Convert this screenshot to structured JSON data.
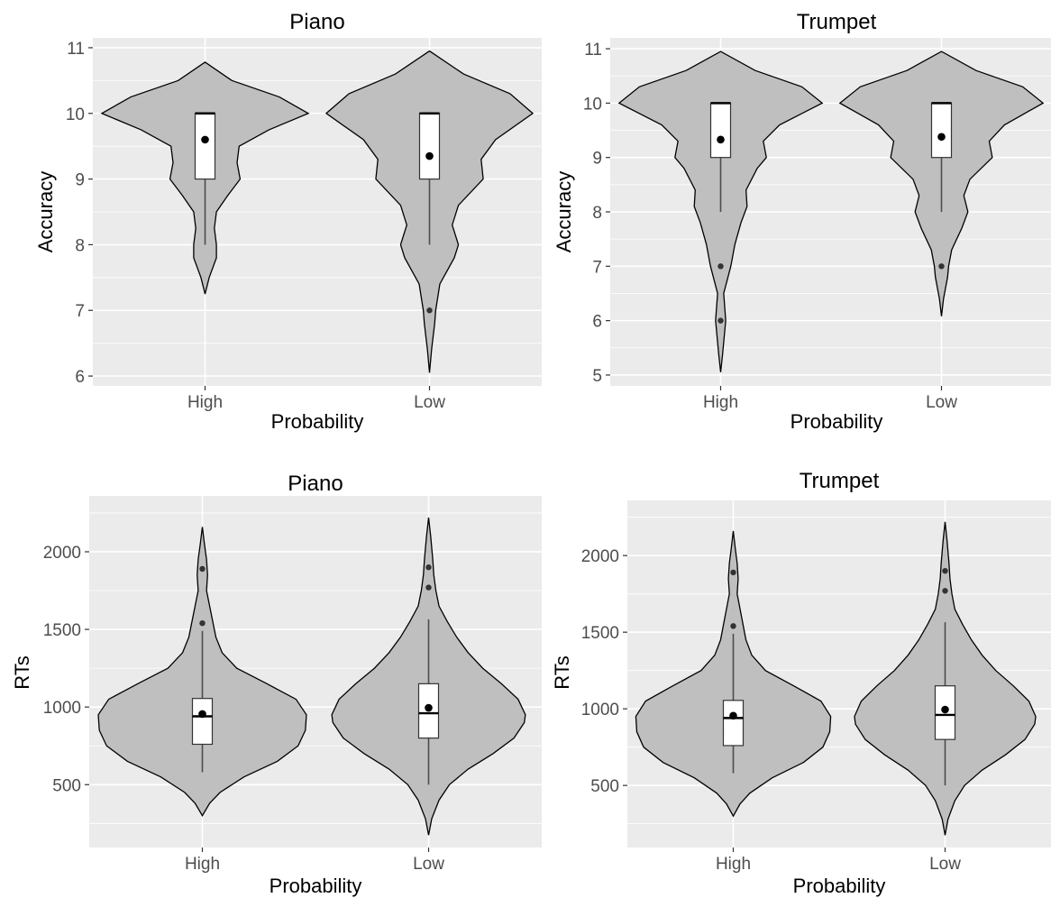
{
  "chart_data": [
    {
      "type": "violin",
      "title": "Piano",
      "xlabel": "Probability",
      "ylabel": "Accuracy",
      "categories": [
        "High",
        "Low"
      ],
      "ylim": [
        5.85,
        11.15
      ],
      "yticks": [
        6,
        7,
        8,
        9,
        10,
        11
      ],
      "grid": true,
      "violins": [
        {
          "category": "High",
          "min": 7.25,
          "max": 10.78,
          "density": [
            [
              7.25,
              0.0
            ],
            [
              7.5,
              0.04
            ],
            [
              7.8,
              0.11
            ],
            [
              8.0,
              0.11
            ],
            [
              8.25,
              0.09
            ],
            [
              8.5,
              0.11
            ],
            [
              8.75,
              0.22
            ],
            [
              9.0,
              0.34
            ],
            [
              9.25,
              0.31
            ],
            [
              9.5,
              0.33
            ],
            [
              9.75,
              0.62
            ],
            [
              10.0,
              1.0
            ],
            [
              10.25,
              0.72
            ],
            [
              10.5,
              0.26
            ],
            [
              10.78,
              0.0
            ]
          ],
          "q1": 9,
          "median": 10,
          "q3": 10,
          "whisker_low": 8,
          "whisker_high": 10,
          "mean": 9.6,
          "outliers": []
        },
        {
          "category": "Low",
          "min": 6.05,
          "max": 10.95,
          "density": [
            [
              6.05,
              0.0
            ],
            [
              6.4,
              0.02
            ],
            [
              6.8,
              0.05
            ],
            [
              7.0,
              0.06
            ],
            [
              7.4,
              0.1
            ],
            [
              7.8,
              0.24
            ],
            [
              8.0,
              0.28
            ],
            [
              8.3,
              0.22
            ],
            [
              8.6,
              0.28
            ],
            [
              9.0,
              0.52
            ],
            [
              9.3,
              0.5
            ],
            [
              9.6,
              0.64
            ],
            [
              10.0,
              1.0
            ],
            [
              10.3,
              0.78
            ],
            [
              10.6,
              0.33
            ],
            [
              10.95,
              0.0
            ]
          ],
          "q1": 9,
          "median": 10,
          "q3": 10,
          "whisker_low": 8,
          "whisker_high": 10,
          "mean": 9.35,
          "outliers": [
            7
          ]
        }
      ]
    },
    {
      "type": "violin",
      "title": "Trumpet",
      "xlabel": "Probability",
      "ylabel": "Accuracy",
      "categories": [
        "High",
        "Low"
      ],
      "ylim": [
        4.8,
        11.2
      ],
      "yticks": [
        5,
        6,
        7,
        8,
        9,
        10,
        11
      ],
      "grid": true,
      "violins": [
        {
          "category": "High",
          "min": 5.05,
          "max": 10.95,
          "density": [
            [
              5.05,
              0.0
            ],
            [
              5.4,
              0.02
            ],
            [
              6.0,
              0.05
            ],
            [
              6.5,
              0.03
            ],
            [
              7.0,
              0.1
            ],
            [
              7.4,
              0.14
            ],
            [
              7.8,
              0.2
            ],
            [
              8.1,
              0.26
            ],
            [
              8.4,
              0.25
            ],
            [
              8.8,
              0.36
            ],
            [
              9.0,
              0.45
            ],
            [
              9.3,
              0.42
            ],
            [
              9.6,
              0.58
            ],
            [
              10.0,
              1.0
            ],
            [
              10.3,
              0.8
            ],
            [
              10.6,
              0.34
            ],
            [
              10.95,
              0.0
            ]
          ],
          "q1": 9,
          "median": 10,
          "q3": 10,
          "whisker_low": 8,
          "whisker_high": 10,
          "mean": 9.33,
          "outliers": [
            7,
            6
          ]
        },
        {
          "category": "Low",
          "min": 6.08,
          "max": 10.95,
          "density": [
            [
              6.08,
              0.0
            ],
            [
              6.4,
              0.02
            ],
            [
              6.8,
              0.06
            ],
            [
              7.0,
              0.07
            ],
            [
              7.3,
              0.1
            ],
            [
              7.7,
              0.2
            ],
            [
              8.0,
              0.26
            ],
            [
              8.3,
              0.22
            ],
            [
              8.6,
              0.28
            ],
            [
              9.0,
              0.5
            ],
            [
              9.3,
              0.47
            ],
            [
              9.6,
              0.62
            ],
            [
              10.0,
              1.0
            ],
            [
              10.3,
              0.8
            ],
            [
              10.6,
              0.34
            ],
            [
              10.95,
              0.0
            ]
          ],
          "q1": 9,
          "median": 10,
          "q3": 10,
          "whisker_low": 8,
          "whisker_high": 10,
          "mean": 9.38,
          "outliers": [
            7
          ]
        }
      ]
    },
    {
      "type": "violin",
      "title": "Piano",
      "xlabel": "Probability",
      "ylabel": "RTs",
      "categories": [
        "High",
        "Low"
      ],
      "ylim": [
        95,
        2360
      ],
      "yticks": [
        500,
        1000,
        1500,
        2000
      ],
      "grid": true,
      "violins": [
        {
          "category": "High",
          "min": 300,
          "max": 2160,
          "density": [
            [
              300,
              0.0
            ],
            [
              380,
              0.07
            ],
            [
              450,
              0.17
            ],
            [
              550,
              0.4
            ],
            [
              650,
              0.72
            ],
            [
              750,
              0.92
            ],
            [
              850,
              0.99
            ],
            [
              950,
              1.0
            ],
            [
              1050,
              0.9
            ],
            [
              1150,
              0.62
            ],
            [
              1250,
              0.33
            ],
            [
              1350,
              0.19
            ],
            [
              1450,
              0.13
            ],
            [
              1550,
              0.1
            ],
            [
              1650,
              0.07
            ],
            [
              1750,
              0.04
            ],
            [
              1850,
              0.05
            ],
            [
              1950,
              0.04
            ],
            [
              2050,
              0.02
            ],
            [
              2160,
              0.0
            ]
          ],
          "q1": 760,
          "median": 940,
          "q3": 1055,
          "whisker_low": 580,
          "whisker_high": 1490,
          "mean": 955,
          "outliers": [
            1540,
            1890
          ]
        },
        {
          "category": "Low",
          "min": 175,
          "max": 2220,
          "density": [
            [
              175,
              0.0
            ],
            [
              280,
              0.03
            ],
            [
              400,
              0.1
            ],
            [
              500,
              0.2
            ],
            [
              600,
              0.38
            ],
            [
              700,
              0.62
            ],
            [
              800,
              0.82
            ],
            [
              900,
              0.92
            ],
            [
              950,
              0.93
            ],
            [
              1050,
              0.86
            ],
            [
              1150,
              0.7
            ],
            [
              1250,
              0.52
            ],
            [
              1350,
              0.38
            ],
            [
              1450,
              0.27
            ],
            [
              1550,
              0.18
            ],
            [
              1650,
              0.1
            ],
            [
              1750,
              0.07
            ],
            [
              1850,
              0.05
            ],
            [
              1950,
              0.04
            ],
            [
              2100,
              0.02
            ],
            [
              2220,
              0.0
            ]
          ],
          "q1": 800,
          "median": 960,
          "q3": 1150,
          "whisker_low": 500,
          "whisker_high": 1565,
          "mean": 995,
          "outliers": [
            1770,
            1900
          ]
        }
      ]
    },
    {
      "type": "violin",
      "title": "Trumpet",
      "xlabel": "Probability",
      "ylabel": "RTs",
      "categories": [
        "High",
        "Low"
      ],
      "ylim": [
        95,
        2360
      ],
      "yticks": [
        500,
        1000,
        1500,
        2000
      ],
      "grid": true,
      "violins": [
        {
          "category": "High",
          "min": 300,
          "max": 2160,
          "density": [
            [
              300,
              0.0
            ],
            [
              380,
              0.07
            ],
            [
              450,
              0.17
            ],
            [
              550,
              0.4
            ],
            [
              650,
              0.72
            ],
            [
              750,
              0.92
            ],
            [
              850,
              0.99
            ],
            [
              950,
              1.0
            ],
            [
              1050,
              0.9
            ],
            [
              1150,
              0.62
            ],
            [
              1250,
              0.33
            ],
            [
              1350,
              0.19
            ],
            [
              1450,
              0.13
            ],
            [
              1550,
              0.1
            ],
            [
              1650,
              0.07
            ],
            [
              1750,
              0.04
            ],
            [
              1850,
              0.05
            ],
            [
              1950,
              0.04
            ],
            [
              2050,
              0.02
            ],
            [
              2160,
              0.0
            ]
          ],
          "q1": 760,
          "median": 940,
          "q3": 1055,
          "whisker_low": 580,
          "whisker_high": 1490,
          "mean": 955,
          "outliers": [
            1540,
            1890
          ]
        },
        {
          "category": "Low",
          "min": 175,
          "max": 2220,
          "density": [
            [
              175,
              0.0
            ],
            [
              280,
              0.03
            ],
            [
              400,
              0.1
            ],
            [
              500,
              0.2
            ],
            [
              600,
              0.38
            ],
            [
              700,
              0.62
            ],
            [
              800,
              0.82
            ],
            [
              900,
              0.92
            ],
            [
              950,
              0.93
            ],
            [
              1050,
              0.86
            ],
            [
              1150,
              0.7
            ],
            [
              1250,
              0.52
            ],
            [
              1350,
              0.38
            ],
            [
              1450,
              0.27
            ],
            [
              1550,
              0.18
            ],
            [
              1650,
              0.1
            ],
            [
              1750,
              0.07
            ],
            [
              1850,
              0.05
            ],
            [
              1950,
              0.04
            ],
            [
              2100,
              0.02
            ],
            [
              2220,
              0.0
            ]
          ],
          "q1": 800,
          "median": 960,
          "q3": 1150,
          "whisker_low": 500,
          "whisker_high": 1565,
          "mean": 995,
          "outliers": [
            1770,
            1900
          ]
        }
      ]
    }
  ]
}
